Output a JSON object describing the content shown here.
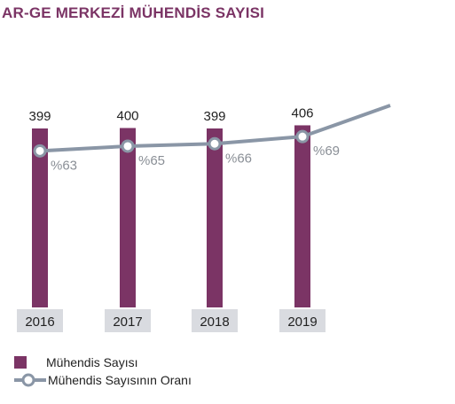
{
  "title": "AR-GE MERKEZİ MÜHENDİS SAYISI",
  "colors": {
    "bar": "#7b3465",
    "line": "#8a96a6",
    "year_box": "#d9dbe0",
    "pct_text": "#8a8f96",
    "value_text": "#222222"
  },
  "chart_data": {
    "type": "bar",
    "categories": [
      "2016",
      "2017",
      "2018",
      "2019"
    ],
    "series": [
      {
        "name": "Mühendis Sayısı",
        "type": "bar",
        "values": [
          399,
          400,
          399,
          406
        ],
        "labels": [
          "399",
          "400",
          "399",
          "406"
        ]
      },
      {
        "name": "Mühendis Sayısının Oranı",
        "type": "line",
        "values": [
          63,
          65,
          66,
          69
        ],
        "labels": [
          "%63",
          "%65",
          "%66",
          "%69"
        ]
      }
    ],
    "legend": {
      "position": "bottom-left"
    },
    "grid": false
  }
}
